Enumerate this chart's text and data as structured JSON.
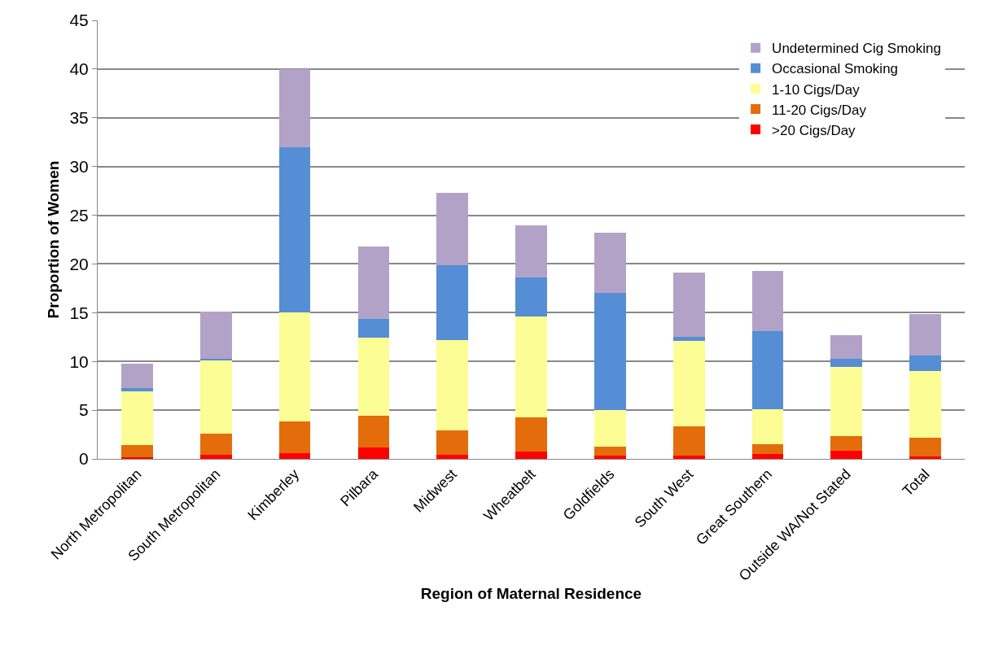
{
  "chart_data": {
    "type": "bar",
    "stacked": true,
    "xlabel": "Region of Maternal Residence",
    "ylabel": "Proportion of Women",
    "categories": [
      "North Metropolitan",
      "South Metropolitan",
      "Kimberley",
      "Pilbara",
      "Midwest",
      "Wheatbelt",
      "Goldfields",
      "South West",
      "Great Southern",
      "Outside WA/Not Stated",
      "Total"
    ],
    "series": [
      {
        "name": ">20 Cigs/Day",
        "color": "#ff0000",
        "values": [
          0.15,
          0.4,
          0.6,
          1.15,
          0.4,
          0.75,
          0.3,
          0.35,
          0.5,
          0.8,
          0.25
        ]
      },
      {
        "name": "11-20 Cigs/Day",
        "color": "#e46c0a",
        "values": [
          1.25,
          2.2,
          3.2,
          3.25,
          2.5,
          3.55,
          0.95,
          3.0,
          1.0,
          1.55,
          1.95
        ]
      },
      {
        "name": "1-10 Cigs/Day",
        "color": "#fdfd96",
        "values": [
          5.5,
          7.5,
          11.2,
          8.0,
          9.3,
          10.3,
          3.75,
          8.75,
          3.6,
          7.1,
          6.8
        ]
      },
      {
        "name": "Occasional Smoking",
        "color": "#558ed5",
        "values": [
          0.4,
          0.2,
          17.0,
          2.0,
          7.7,
          4.0,
          12.0,
          0.4,
          8.0,
          0.85,
          1.6
        ]
      },
      {
        "name": "Undetermined Cig Smoking",
        "color": "#b3a2c7",
        "values": [
          2.5,
          4.8,
          8.0,
          7.4,
          7.4,
          5.4,
          6.2,
          6.6,
          6.2,
          2.35,
          4.25
        ]
      }
    ],
    "ylim": [
      0,
      45
    ],
    "yticks": [
      0,
      5,
      10,
      15,
      20,
      25,
      30,
      35,
      40,
      45
    ],
    "grid": "y",
    "legend": "top right"
  }
}
